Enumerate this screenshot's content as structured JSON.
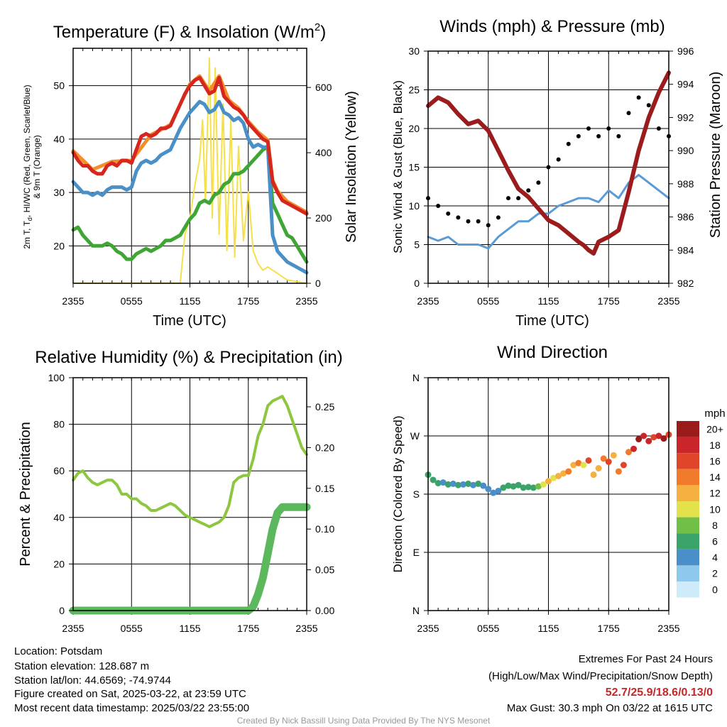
{
  "chart_data": [
    {
      "id": "temp",
      "type": "line",
      "title": "Temperature (F) & Insolation (W/m",
      "title_sup": "2",
      "title_end": ")",
      "xlabel": "Time (UTC)",
      "ylabel_left_line1": "2m T, T",
      "ylabel_left_sub": "d",
      "ylabel_left_line1_end": ", HI/WC (Red, Green, Scarlet/Blue)",
      "ylabel_left_line2": "& 9m T (Orange)",
      "ylabel_right": "Solar Insolation (Yellow)",
      "x_ticks": [
        "2355",
        "0555",
        "1155",
        "1755",
        "2355"
      ],
      "ylim": [
        13,
        57
      ],
      "y_ticks": [
        20,
        30,
        40,
        50
      ],
      "y2lim": [
        0,
        720
      ],
      "y2_ticks": [
        0,
        200,
        400,
        600
      ],
      "colors": {
        "temp": "#d7261e",
        "t9m": "#f28e2b",
        "dewpoint": "#3fa535",
        "windchill": "#4a90c8",
        "insolation": "#f5e04a"
      },
      "series": [
        {
          "name": "2m T",
          "key": "temp",
          "x": [
            0,
            0.5,
            1,
            1.5,
            2,
            2.5,
            3,
            3.5,
            4,
            4.5,
            5,
            5.5,
            6,
            6.5,
            7,
            7.5,
            8,
            8.5,
            9,
            9.5,
            10,
            10.5,
            11,
            11.5,
            12,
            12.5,
            13,
            13.5,
            14,
            14.5,
            15,
            15.5,
            16,
            16.5,
            17,
            17.5,
            18,
            18.5,
            19,
            19.5,
            20,
            20.5,
            21,
            21.5,
            22,
            22.5,
            23,
            23.5,
            24
          ],
          "y": [
            37.5,
            36,
            35,
            35,
            34,
            33.5,
            33.5,
            35,
            35.5,
            35,
            36,
            36,
            35.5,
            38,
            40.5,
            41,
            40.5,
            41,
            42,
            42,
            42.5,
            44.5,
            46.5,
            48.5,
            50,
            51,
            51.5,
            50,
            48.5,
            49,
            51.5,
            48,
            47,
            46,
            45.5,
            44.5,
            43,
            42,
            41,
            40,
            39.5,
            32,
            30,
            28.5,
            28,
            27.5,
            27,
            26.5,
            26
          ]
        },
        {
          "name": "9m T",
          "key": "t9m",
          "x": [
            0,
            2,
            4,
            6,
            8,
            10,
            12,
            13,
            14,
            15,
            16,
            17,
            18,
            19,
            20,
            20.5,
            21,
            22,
            23,
            24
          ],
          "y": [
            37.8,
            34.3,
            35.8,
            36,
            40.8,
            42.7,
            50.3,
            51.8,
            49,
            51.8,
            47.3,
            45.8,
            43.3,
            41.3,
            39.8,
            32.3,
            30.3,
            28.3,
            27.3,
            26.3
          ]
        },
        {
          "name": "Wind chill",
          "key": "windchill",
          "x": [
            0,
            0.5,
            1,
            1.5,
            2,
            2.5,
            3,
            3.5,
            4,
            4.5,
            5,
            5.5,
            6,
            6.5,
            7,
            7.5,
            8,
            8.5,
            9,
            9.5,
            10,
            10.5,
            11,
            11.5,
            12,
            12.5,
            13,
            13.5,
            14,
            14.5,
            15,
            15.5,
            16,
            16.5,
            17,
            17.5,
            18,
            18.5,
            19,
            19.5,
            20,
            20.5,
            21,
            21.5,
            22,
            22.5,
            23,
            23.5,
            24
          ],
          "y": [
            32,
            31,
            30,
            30,
            29.5,
            30,
            29.5,
            30.5,
            31,
            31,
            31,
            30.5,
            31,
            34,
            35.5,
            36,
            35.5,
            36,
            37,
            37.5,
            38,
            40,
            42,
            43.5,
            45,
            46,
            47,
            46.5,
            45,
            45.5,
            47,
            45,
            44.5,
            43.5,
            44,
            43,
            40,
            38.5,
            39,
            38.5,
            38.5,
            22,
            19,
            18,
            17,
            16.5,
            16,
            15.5,
            15
          ]
        },
        {
          "name": "Dewpoint",
          "key": "dewpoint",
          "x": [
            0,
            0.5,
            1,
            1.5,
            2,
            2.5,
            3,
            3.5,
            4,
            4.5,
            5,
            5.5,
            6,
            6.5,
            7,
            7.5,
            8,
            8.5,
            9,
            9.5,
            10,
            10.5,
            11,
            11.5,
            12,
            12.5,
            13,
            13.5,
            14,
            14.5,
            15,
            15.5,
            16,
            16.5,
            17,
            17.5,
            18,
            18.5,
            19,
            19.5,
            20,
            20.5,
            21,
            21.5,
            22,
            22.5,
            23,
            23.5,
            24
          ],
          "y": [
            23,
            23.5,
            22,
            21,
            20,
            20,
            20,
            20.5,
            20,
            19,
            18.5,
            17.5,
            17.5,
            18.5,
            19,
            19.5,
            19,
            19.5,
            20,
            21,
            21,
            21.5,
            22,
            23.5,
            25,
            26,
            28,
            28.5,
            28,
            29.5,
            30,
            31.5,
            32,
            33.5,
            33.5,
            34,
            35,
            36,
            37,
            38,
            38.5,
            28,
            26,
            24,
            22,
            21.5,
            20,
            18.5,
            17
          ]
        },
        {
          "name": "Insolation",
          "key": "insolation",
          "x": [
            0,
            10,
            11,
            11.5,
            12,
            12.5,
            13,
            13.3,
            13.6,
            14,
            14.3,
            14.6,
            15,
            15.4,
            15.8,
            16.2,
            16.6,
            17,
            17.5,
            18,
            18.5,
            19,
            19.5,
            20,
            21,
            22,
            23,
            24
          ],
          "y": [
            0,
            0,
            0,
            150,
            200,
            300,
            380,
            500,
            250,
            690,
            200,
            660,
            150,
            550,
            100,
            500,
            80,
            420,
            130,
            280,
            100,
            60,
            40,
            50,
            30,
            10,
            5,
            0
          ]
        }
      ]
    },
    {
      "id": "winds",
      "type": "line",
      "title": "Winds (mph) & Pressure (mb)",
      "xlabel": "Time (UTC)",
      "ylabel_left": "Sonic Wind & Gust (Blue, Black)",
      "ylabel_right": "Station Pressure (Maroon)",
      "x_ticks": [
        "2355",
        "0555",
        "1155",
        "1755",
        "2355"
      ],
      "ylim": [
        0,
        30
      ],
      "y_ticks": [
        0,
        5,
        10,
        15,
        20,
        25,
        30
      ],
      "y2lim": [
        982,
        996
      ],
      "y2_ticks": [
        982,
        984,
        986,
        988,
        990,
        992,
        994,
        996
      ],
      "colors": {
        "wind": "#5b9bd5",
        "gust": "#000000",
        "pressure": "#9b1c1c"
      },
      "series": [
        {
          "name": "Sonic Wind",
          "key": "wind",
          "x": [
            0,
            1,
            2,
            3,
            4,
            5,
            6,
            7,
            8,
            9,
            10,
            11,
            12,
            13,
            14,
            15,
            16,
            17,
            18,
            19,
            20,
            21,
            22,
            23,
            24
          ],
          "y": [
            6,
            5.5,
            6,
            5,
            5,
            5,
            4.5,
            6,
            7,
            8,
            8,
            9,
            9,
            10,
            10.5,
            11,
            11,
            10.5,
            12,
            11,
            13,
            14,
            13,
            12,
            11
          ]
        },
        {
          "name": "Gust",
          "key": "gust",
          "x": [
            0,
            1,
            2,
            3,
            4,
            5,
            6,
            7,
            8,
            9,
            10,
            11,
            12,
            13,
            14,
            15,
            16,
            17,
            18,
            19,
            20,
            21,
            22,
            23,
            24
          ],
          "y": [
            11,
            10,
            9,
            8.5,
            8,
            8,
            7.5,
            8.5,
            11,
            11,
            12,
            13,
            15,
            16,
            18,
            19,
            20,
            19,
            20,
            19,
            22,
            24,
            23,
            20,
            19
          ]
        },
        {
          "name": "Station Pressure",
          "key": "pressure",
          "x": [
            0,
            1,
            2,
            3,
            4,
            5,
            6,
            7,
            8,
            9,
            10,
            11,
            12,
            13,
            14,
            15,
            15.5,
            16,
            16.5,
            17,
            18,
            19,
            20,
            21,
            22,
            23,
            24
          ],
          "y": [
            992.7,
            993.2,
            992.9,
            992.2,
            991.6,
            991.8,
            991.2,
            990,
            988.8,
            987.7,
            987.2,
            986.5,
            985.8,
            985.5,
            985,
            984.5,
            984.3,
            984,
            983.8,
            984.5,
            984.8,
            985.2,
            987.5,
            990,
            992,
            993.5,
            994.7
          ]
        }
      ]
    },
    {
      "id": "rh",
      "type": "line",
      "title": "Relative Humidity (%) & Precipitation (in)",
      "ylabel_left": "Percent & Precipitation",
      "x_ticks": [
        "2355",
        "0555",
        "1155",
        "1755",
        "2355"
      ],
      "ylim": [
        0,
        100
      ],
      "y_ticks": [
        0,
        20,
        40,
        60,
        80,
        100
      ],
      "y2lim": [
        0,
        0.2857
      ],
      "y2_ticks": [
        "0.00",
        "0.05",
        "0.10",
        "0.15",
        "0.20",
        "0.25"
      ],
      "colors": {
        "rh": "#8dc63f",
        "precip": "#5cb85c"
      },
      "series": [
        {
          "name": "Relative Humidity",
          "key": "rh",
          "x": [
            0,
            0.5,
            1,
            1.5,
            2,
            2.5,
            3,
            3.5,
            4,
            4.5,
            5,
            5.5,
            6,
            6.5,
            7,
            7.5,
            8,
            8.5,
            9,
            9.5,
            10,
            10.5,
            11,
            11.5,
            12,
            12.5,
            13,
            13.5,
            14,
            14.5,
            15,
            15.5,
            16,
            16.5,
            17,
            17.5,
            18,
            18.5,
            19,
            19.5,
            20,
            20.5,
            21,
            21.5,
            22,
            22.5,
            23,
            23.5,
            24
          ],
          "y": [
            56,
            59,
            60,
            57,
            55,
            54,
            55,
            56,
            56,
            54,
            50,
            50,
            48,
            48,
            46,
            45,
            43,
            43,
            44,
            45,
            46,
            45,
            43,
            41,
            40,
            39,
            38,
            37,
            36,
            37,
            38,
            40,
            45,
            55,
            57,
            58,
            58,
            65,
            75,
            80,
            88,
            90,
            91,
            92,
            88,
            82,
            76,
            70,
            67
          ]
        },
        {
          "name": "Precipitation",
          "key": "precip",
          "x": [
            0,
            17.5,
            18,
            18.5,
            19,
            19.5,
            20,
            20.5,
            21,
            21.5,
            22,
            22.5,
            23,
            23.5,
            24
          ],
          "y": [
            0,
            0,
            0,
            0.005,
            0.02,
            0.04,
            0.07,
            0.1,
            0.12,
            0.127,
            0.127,
            0.127,
            0.127,
            0.127,
            0.127
          ]
        }
      ]
    },
    {
      "id": "wdir",
      "type": "scatter",
      "title": "Wind Direction",
      "ylabel_left": "Direction (Colored By Speed)",
      "x_ticks": [
        "2355",
        "0555",
        "1155",
        "1755",
        "2355"
      ],
      "y_ticks": [
        "N",
        "E",
        "S",
        "W",
        "N"
      ],
      "colorbar_title": "mph",
      "colorbar_labels": [
        "0",
        "2",
        "4",
        "6",
        "8",
        "10",
        "12",
        "14",
        "16",
        "18",
        "20+"
      ],
      "colorbar_colors": [
        "#cfeaf8",
        "#8ec8ec",
        "#4a8fc7",
        "#3aa36a",
        "#72bf48",
        "#e3e24b",
        "#f5b041",
        "#f07b2b",
        "#e0452a",
        "#c9252a",
        "#9a1b1b"
      ],
      "series": [
        {
          "name": "Direction",
          "x": [
            0,
            0.5,
            1,
            1.5,
            2,
            2.5,
            3,
            3.5,
            4,
            4.5,
            5,
            5.5,
            6,
            6.5,
            7,
            7.5,
            8,
            8.5,
            9,
            9.5,
            10,
            10.5,
            11,
            11.5,
            12,
            12.5,
            13,
            13.5,
            14,
            14.5,
            15,
            15.5,
            16,
            16.5,
            17,
            17.5,
            18,
            18.5,
            19,
            19.5,
            20,
            20.5,
            21,
            21.5,
            22,
            22.5,
            23,
            23.5,
            24
          ],
          "y": [
            210,
            202,
            197,
            198,
            195,
            196,
            194,
            195,
            196,
            194,
            196,
            193,
            188,
            182,
            185,
            190,
            193,
            192,
            194,
            190,
            191,
            190,
            192,
            195,
            200,
            205,
            208,
            212,
            215,
            225,
            228,
            225,
            232,
            210,
            220,
            235,
            230,
            240,
            215,
            225,
            245,
            250,
            265,
            270,
            262,
            268,
            270,
            266,
            272
          ],
          "speed": [
            6,
            5,
            5,
            4,
            5,
            4,
            5,
            4,
            5,
            4,
            5,
            3,
            4,
            3,
            4,
            5,
            6,
            6,
            5,
            5,
            6,
            5,
            7,
            9,
            11,
            10,
            12,
            12,
            14,
            11,
            13,
            10,
            16,
            12,
            11,
            14,
            15,
            12,
            13,
            16,
            14,
            18,
            19,
            17,
            18,
            16,
            17,
            19,
            15
          ]
        }
      ]
    }
  ],
  "footer": {
    "location": "Location: Potsdam",
    "elevation": "Station elevation: 128.687 m",
    "latlon": "Station lat/lon: 44.6569; -74.9744",
    "created": "Figure created on Sat, 2025-03-22, at 23:59 UTC",
    "recent": "Most recent data timestamp: 2025/03/22 23:55:00",
    "extremes_title": "Extremes For Past 24 Hours",
    "extremes_sub": "(High/Low/Max Wind/Precipitation/Snow Depth)",
    "extremes_values": "52.7/25.9/18.6/0.13/0",
    "extremes_color": "#c62828",
    "max_gust": "Max Gust: 30.3 mph On 03/22 at 1615 UTC",
    "credit": "Created By Nick Bassill Using Data Provided By The NYS Mesonet"
  }
}
